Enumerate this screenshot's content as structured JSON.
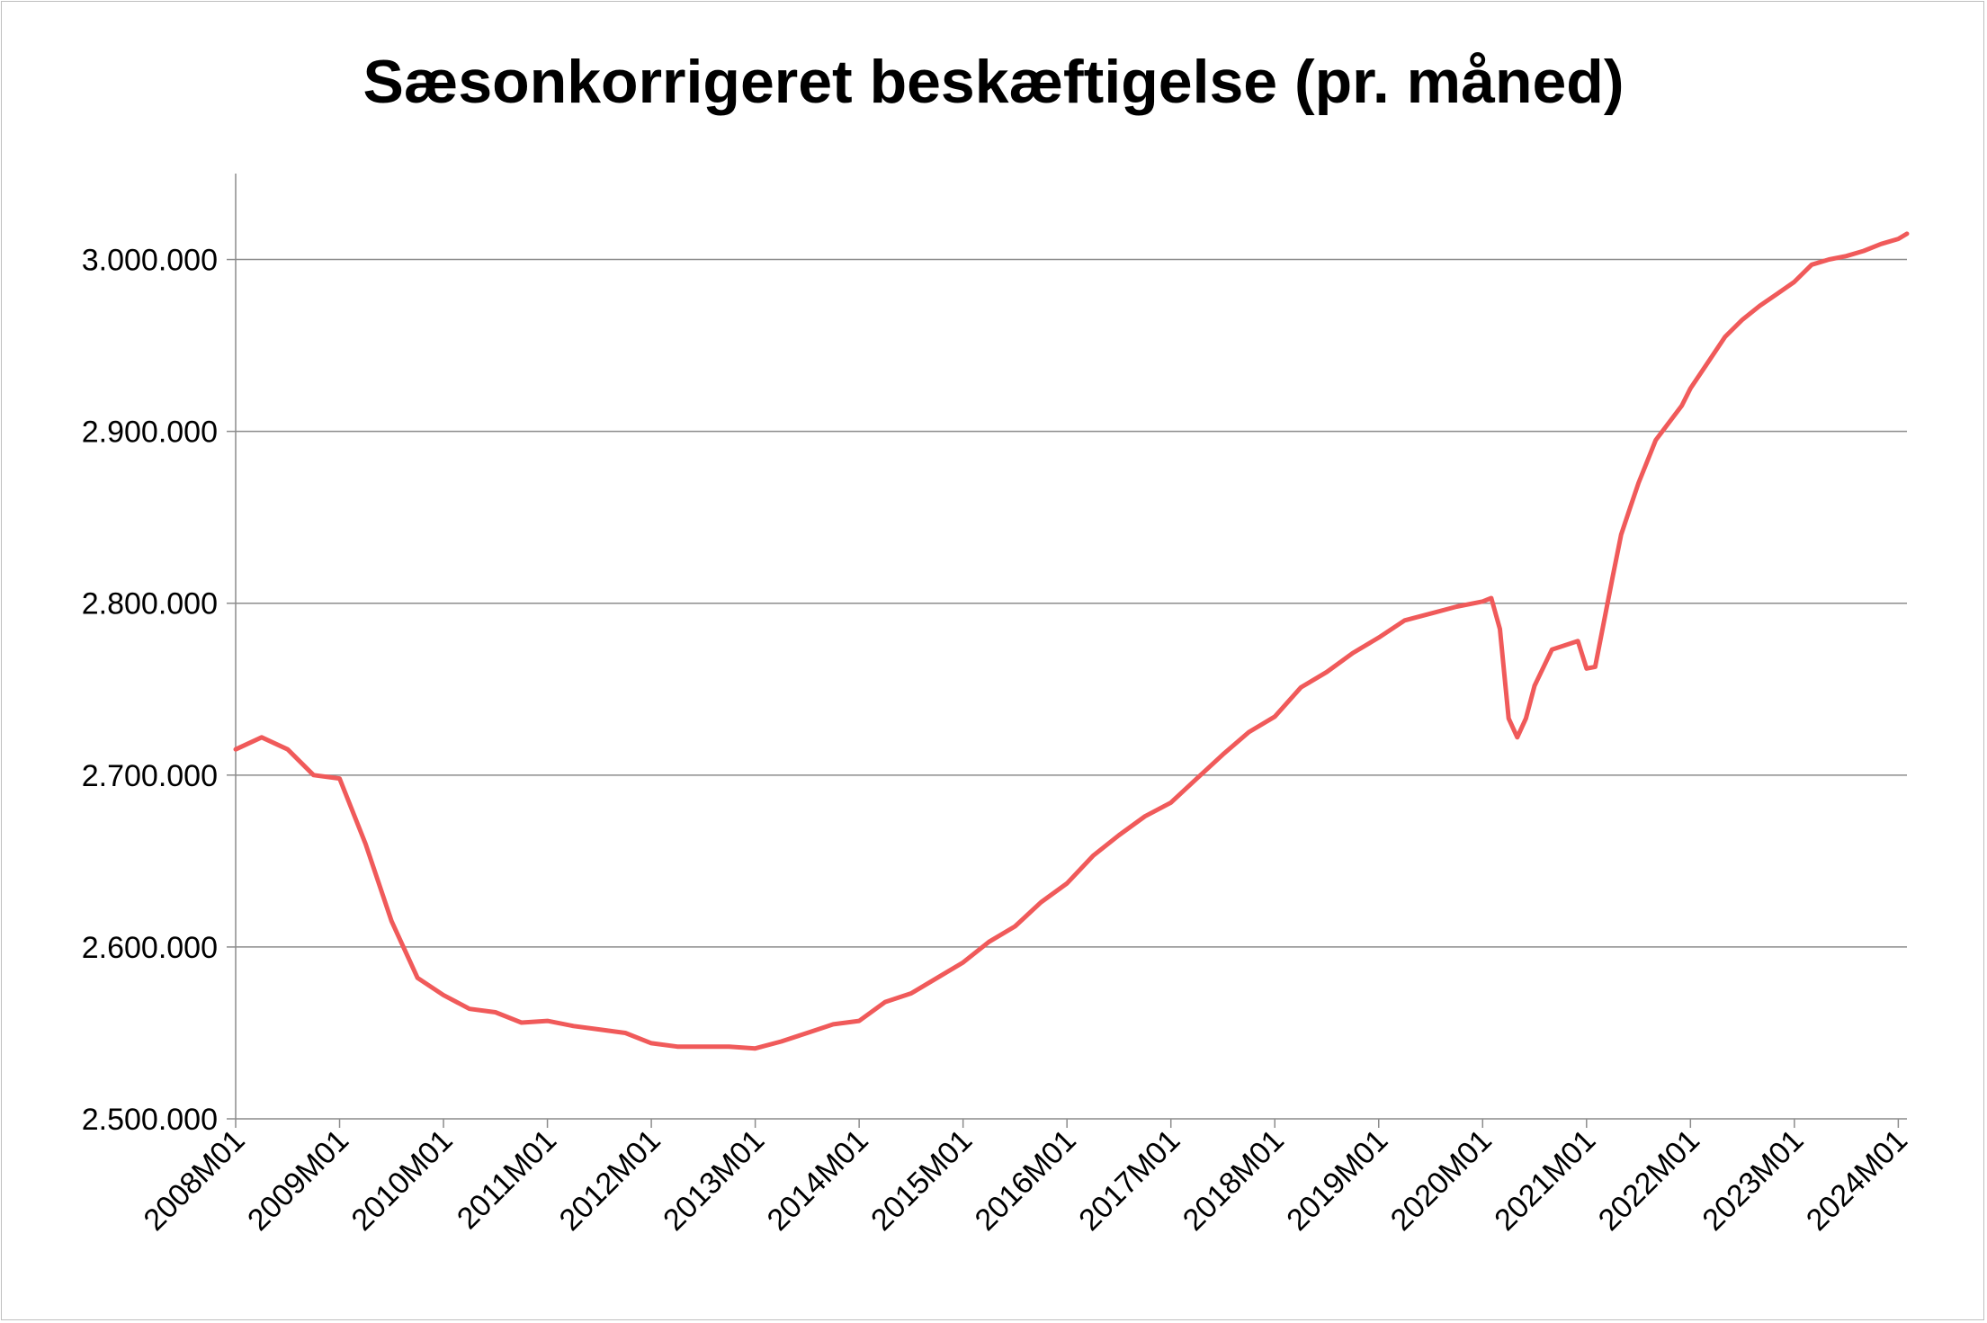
{
  "chart_data": {
    "type": "line",
    "title": "Sæsonkorrigeret beskæftigelse (pr. måned)",
    "xlabel": "",
    "ylabel": "",
    "ylim": [
      2500000,
      3050000
    ],
    "yticks": [
      2500000,
      2600000,
      2700000,
      2800000,
      2900000,
      3000000
    ],
    "ytick_labels": [
      "2.500.000",
      "2.600.000",
      "2.700.000",
      "2.800.000",
      "2.900.000",
      "3.000.000"
    ],
    "xtick_labels": [
      "2008M01",
      "2009M01",
      "2010M01",
      "2011M01",
      "2012M01",
      "2013M01",
      "2014M01",
      "2015M01",
      "2016M01",
      "2017M01",
      "2018M01",
      "2019M01",
      "2020M01",
      "2021M01",
      "2022M01",
      "2023M01",
      "2024M01"
    ],
    "grid": "horizontal",
    "legend": "none",
    "line_color": "#f05a5a",
    "x": [
      "2008M01",
      "2008M04",
      "2008M07",
      "2008M10",
      "2009M01",
      "2009M04",
      "2009M07",
      "2009M10",
      "2010M01",
      "2010M04",
      "2010M07",
      "2010M10",
      "2011M01",
      "2011M04",
      "2011M07",
      "2011M10",
      "2012M01",
      "2012M04",
      "2012M07",
      "2012M10",
      "2013M01",
      "2013M04",
      "2013M07",
      "2013M10",
      "2014M01",
      "2014M04",
      "2014M07",
      "2014M10",
      "2015M01",
      "2015M04",
      "2015M07",
      "2015M10",
      "2016M01",
      "2016M04",
      "2016M07",
      "2016M10",
      "2017M01",
      "2017M04",
      "2017M07",
      "2017M10",
      "2018M01",
      "2018M04",
      "2018M07",
      "2018M10",
      "2019M01",
      "2019M04",
      "2019M07",
      "2019M10",
      "2020M01",
      "2020M02",
      "2020M03",
      "2020M04",
      "2020M05",
      "2020M06",
      "2020M07",
      "2020M09",
      "2020M12",
      "2021M01",
      "2021M02",
      "2021M04",
      "2021M05",
      "2021M06",
      "2021M07",
      "2021M09",
      "2021M12",
      "2022M01",
      "2022M03",
      "2022M05",
      "2022M07",
      "2022M09",
      "2022M11",
      "2023M01",
      "2023M03",
      "2023M05",
      "2023M07",
      "2023M09",
      "2023M11",
      "2024M01",
      "2024M02"
    ],
    "values": [
      2715000,
      2722000,
      2715000,
      2700000,
      2698000,
      2660000,
      2615000,
      2582000,
      2572000,
      2564000,
      2562000,
      2556000,
      2557000,
      2554000,
      2552000,
      2550000,
      2544000,
      2542000,
      2542000,
      2542000,
      2541000,
      2545000,
      2550000,
      2555000,
      2557000,
      2568000,
      2573000,
      2582000,
      2591000,
      2603000,
      2612000,
      2626000,
      2637000,
      2653000,
      2665000,
      2676000,
      2684000,
      2698000,
      2712000,
      2725000,
      2734000,
      2751000,
      2760000,
      2771000,
      2780000,
      2790000,
      2794000,
      2798000,
      2801000,
      2803000,
      2785000,
      2733000,
      2722000,
      2733000,
      2752000,
      2773000,
      2778000,
      2762000,
      2763000,
      2815000,
      2840000,
      2855000,
      2870000,
      2895000,
      2915000,
      2925000,
      2940000,
      2955000,
      2965000,
      2973000,
      2980000,
      2987000,
      2997000,
      3000000,
      3002000,
      3005000,
      3009000,
      3012000,
      3015000
    ]
  }
}
